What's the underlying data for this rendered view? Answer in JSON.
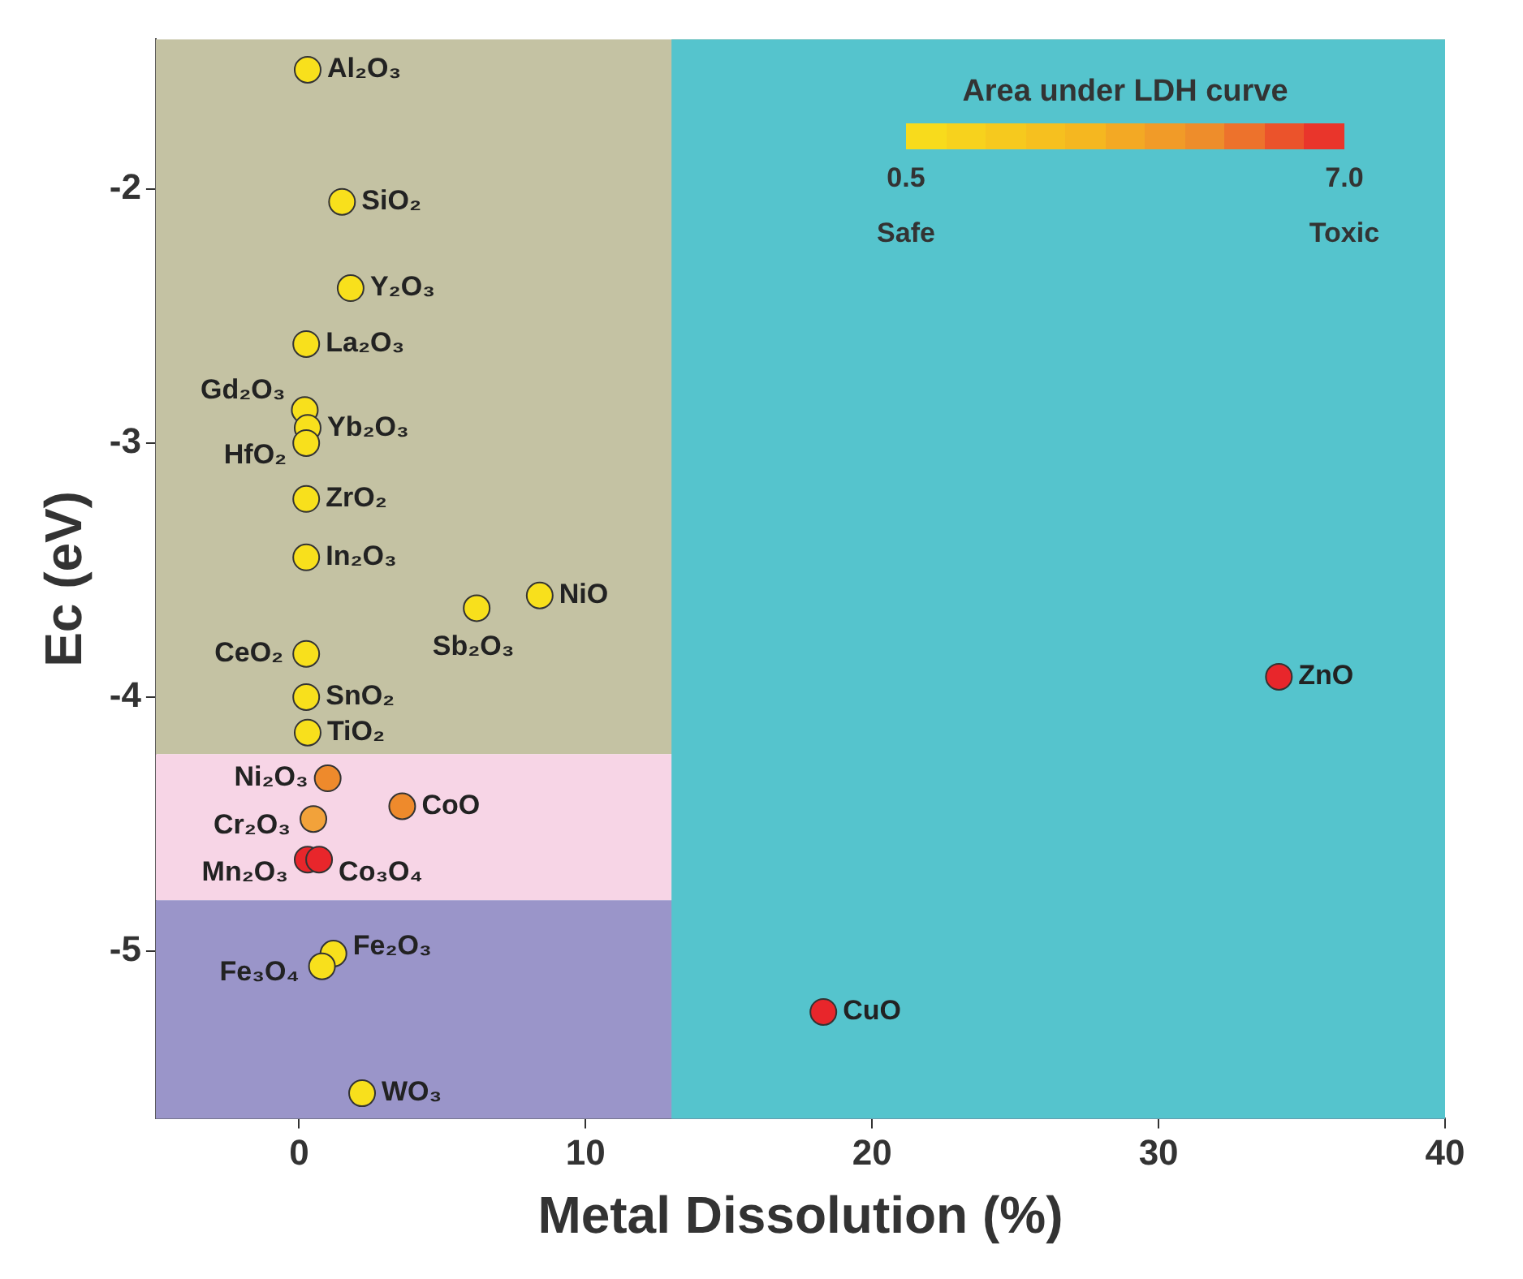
{
  "chart_data": {
    "type": "scatter",
    "xlabel": "Metal Dissolution (%)",
    "ylabel": "Ec (eV)",
    "clabel": "Area under LDH curve",
    "xlim": [
      -5,
      40
    ],
    "xticks": [
      0,
      10,
      20,
      30,
      40
    ],
    "ylim": [
      -5.66,
      -1.41
    ],
    "yticks": [
      -2,
      -3,
      -4,
      -5
    ],
    "grid": false,
    "legend": false,
    "marker": "circle",
    "bands": [
      {
        "axis": "y",
        "from": -4.225,
        "to": -1.41,
        "color": "#c4c2a3"
      },
      {
        "axis": "y",
        "from": -4.8,
        "to": -4.225,
        "color": "#f7d5e6"
      },
      {
        "axis": "y",
        "from": -5.66,
        "to": -4.8,
        "color": "#9a95c9"
      },
      {
        "axis": "x",
        "from": 13,
        "to": 40,
        "color": "#55c4cd"
      }
    ],
    "series": [
      {
        "x": [
          0.3,
          1.5,
          1.8,
          0.25,
          0.2,
          0.3,
          0.25,
          0.25,
          0.25,
          6.2,
          8.4,
          0.25,
          0.25,
          0.3,
          1.0,
          3.6,
          0.5,
          0.3,
          0.7,
          1.2,
          0.8,
          2.2,
          34.2,
          18.3
        ],
        "values": [
          -1.53,
          -2.05,
          -2.39,
          -2.61,
          -2.87,
          -2.94,
          -3.0,
          -3.22,
          -3.45,
          -3.65,
          -3.6,
          -3.83,
          -4.0,
          -4.14,
          -4.32,
          -4.43,
          -4.48,
          -4.64,
          -4.64,
          -5.01,
          -5.06,
          -5.56,
          -3.92,
          -5.24
        ],
        "colors": [
          "#f8e01c",
          "#f8e01c",
          "#f8e01c",
          "#f8e01c",
          "#f8e01c",
          "#f8e01c",
          "#f8e01c",
          "#f8e01c",
          "#f8e01c",
          "#f8e01c",
          "#f8e01c",
          "#f8e01c",
          "#f8e01c",
          "#f8e01c",
          "#ee8a2c",
          "#ee8a2c",
          "#f2a23a",
          "#e8262b",
          "#e8262b",
          "#f8e01c",
          "#f8e01c",
          "#f8e01c",
          "#e8262b",
          "#e8262b"
        ]
      }
    ],
    "annotations": [
      {
        "text": "Al₂O₃",
        "x": 0.3,
        "y": -1.53
      },
      {
        "text": "SiO₂",
        "x": 1.5,
        "y": -2.05
      },
      {
        "text": "Y₂O₃",
        "x": 1.8,
        "y": -2.39
      },
      {
        "text": "La₂O₃",
        "x": 0.25,
        "y": -2.61
      },
      {
        "text": "Gd₂O₃",
        "x": 0.2,
        "y": -2.87
      },
      {
        "text": "Yb₂O₃",
        "x": 0.3,
        "y": -2.94
      },
      {
        "text": "HfO₂",
        "x": 0.25,
        "y": -3.0
      },
      {
        "text": "ZrO₂",
        "x": 0.25,
        "y": -3.22
      },
      {
        "text": "In₂O₃",
        "x": 0.25,
        "y": -3.45
      },
      {
        "text": "Sb₂O₃",
        "x": 6.2,
        "y": -3.65
      },
      {
        "text": "NiO",
        "x": 8.4,
        "y": -3.6
      },
      {
        "text": "CeO₂",
        "x": 0.25,
        "y": -3.83
      },
      {
        "text": "SnO₂",
        "x": 0.25,
        "y": -4.0
      },
      {
        "text": "TiO₂",
        "x": 0.3,
        "y": -4.14
      },
      {
        "text": "Ni₂O₃",
        "x": 1.0,
        "y": -4.32
      },
      {
        "text": "CoO",
        "x": 3.6,
        "y": -4.43
      },
      {
        "text": "Cr₂O₃",
        "x": 0.5,
        "y": -4.48
      },
      {
        "text": "Mn₂O₃",
        "x": 0.3,
        "y": -4.64
      },
      {
        "text": "Co₃O₄",
        "x": 0.7,
        "y": -4.64
      },
      {
        "text": "Fe₂O₃",
        "x": 1.2,
        "y": -5.01
      },
      {
        "text": "Fe₃O₄",
        "x": 0.8,
        "y": -5.06
      },
      {
        "text": "WO₃",
        "x": 2.2,
        "y": -5.56
      },
      {
        "text": "ZnO",
        "x": 34.2,
        "y": -3.92
      },
      {
        "text": "CuO",
        "x": 18.3,
        "y": -5.24
      },
      "0.5",
      "7.0",
      "Safe",
      "Toxic"
    ]
  }
}
